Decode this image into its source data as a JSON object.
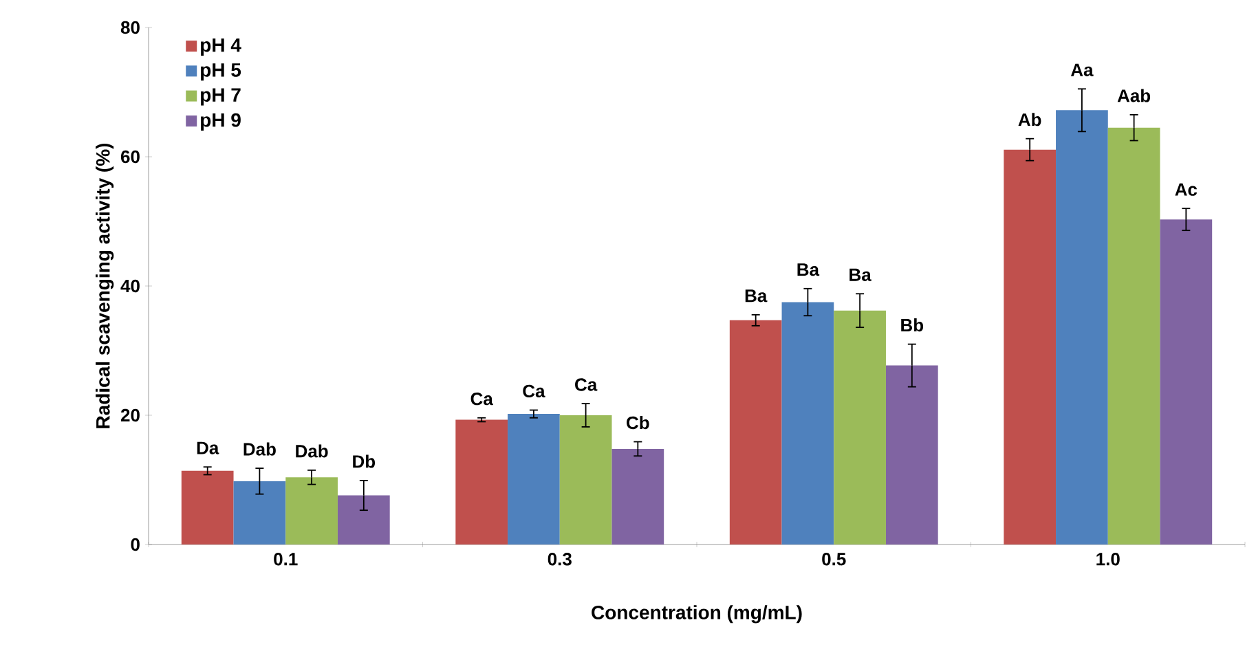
{
  "chart_data": {
    "type": "bar",
    "xlabel": "Concentration (mg/mL)",
    "ylabel": "Radical scavenging activity (%)",
    "categories": [
      "0.1",
      "0.3",
      "0.5",
      "1.0"
    ],
    "ylim": [
      0,
      80
    ],
    "yticks": [
      0,
      20,
      40,
      60,
      80
    ],
    "grid": false,
    "legend": "top left",
    "series": [
      {
        "name": "pH 4",
        "color": "#c0504d",
        "values": [
          11.4,
          19.3,
          34.7,
          61.1
        ],
        "errors": [
          0.6,
          0.3,
          0.85,
          1.7
        ],
        "value_labels": [
          "Da",
          "Ca",
          "Ba",
          "Ab"
        ]
      },
      {
        "name": "pH 5",
        "color": "#4f81bd",
        "values": [
          9.8,
          20.2,
          37.5,
          67.2
        ],
        "errors": [
          2.0,
          0.6,
          2.1,
          3.3
        ],
        "value_labels": [
          "Dab",
          "Ca",
          "Ba",
          "Aa"
        ]
      },
      {
        "name": "pH 7",
        "color": "#9bbb59",
        "values": [
          10.4,
          20.0,
          36.2,
          64.5
        ],
        "errors": [
          1.1,
          1.8,
          2.6,
          2.0
        ],
        "value_labels": [
          "Dab",
          "Ca",
          "Ba",
          "Aab"
        ]
      },
      {
        "name": "pH 9",
        "color": "#8064a2",
        "values": [
          7.6,
          14.8,
          27.7,
          50.3
        ],
        "errors": [
          2.3,
          1.1,
          3.3,
          1.7
        ],
        "value_labels": [
          "Db",
          "Cb",
          "Bb",
          "Ac"
        ]
      }
    ]
  }
}
